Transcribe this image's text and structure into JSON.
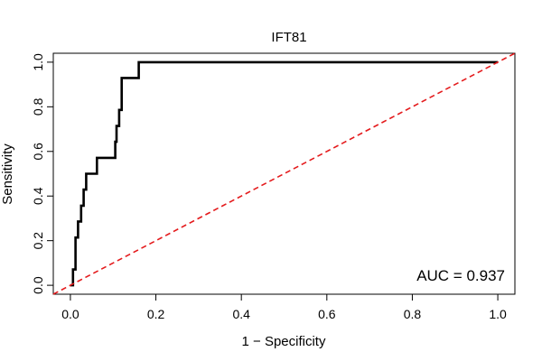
{
  "chart_data": {
    "type": "line",
    "title": "IFT81",
    "xlabel": "1 − Specificity",
    "ylabel": "Sensitivity",
    "xlim": [
      -0.04,
      1.04
    ],
    "ylim": [
      -0.04,
      1.04
    ],
    "x_ticks": [
      0.0,
      0.2,
      0.4,
      0.6,
      0.8,
      1.0
    ],
    "x_tick_labels": [
      "0.0",
      "0.2",
      "0.4",
      "0.6",
      "0.8",
      "1.0"
    ],
    "y_ticks": [
      0.0,
      0.2,
      0.4,
      0.6,
      0.8,
      1.0
    ],
    "y_tick_labels": [
      "0.0",
      "0.2",
      "0.4",
      "0.6",
      "0.8",
      "1.0"
    ],
    "grid": false,
    "annotation": "AUC = 0.937",
    "series": [
      {
        "role": "roc-curve",
        "color": "#000000",
        "x": [
          0.0,
          0.006,
          0.006,
          0.012,
          0.012,
          0.018,
          0.018,
          0.025,
          0.025,
          0.031,
          0.031,
          0.037,
          0.037,
          0.043,
          0.043,
          0.062,
          0.062,
          0.105,
          0.105,
          0.108,
          0.108,
          0.114,
          0.114,
          0.12,
          0.12,
          0.16,
          0.16,
          1.0
        ],
        "y": [
          0.0,
          0.0,
          0.071,
          0.071,
          0.214,
          0.214,
          0.286,
          0.286,
          0.357,
          0.357,
          0.429,
          0.429,
          0.5,
          0.5,
          0.5,
          0.5,
          0.571,
          0.571,
          0.643,
          0.643,
          0.714,
          0.714,
          0.786,
          0.786,
          0.929,
          0.929,
          1.0,
          1.0
        ]
      },
      {
        "role": "reference-diagonal",
        "color": "#e41a1c",
        "x": [
          -0.04,
          1.04
        ],
        "y": [
          -0.04,
          1.04
        ]
      }
    ]
  }
}
